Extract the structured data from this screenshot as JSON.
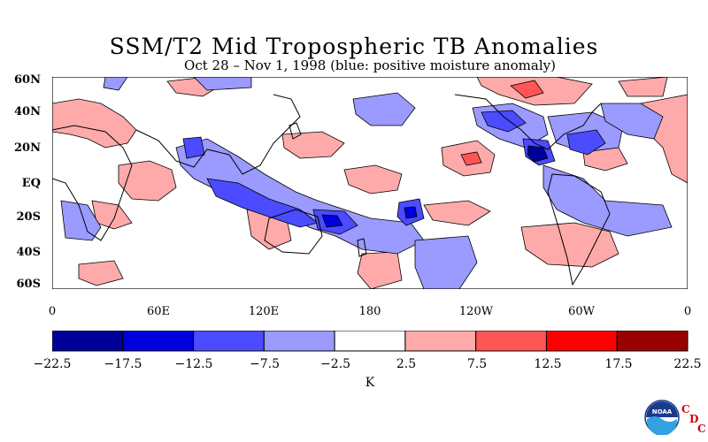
{
  "title": "SSM/T2 Mid Tropospheric TB Anomalies",
  "subtitle": "Oct 28 – Nov 1, 1998 (blue: positive moisture anomaly)",
  "map": {
    "lat_labels": [
      "60N",
      "40N",
      "20N",
      "EQ",
      "20S",
      "40S",
      "60S"
    ],
    "lon_labels": [
      "0",
      "60E",
      "120E",
      "180",
      "120W",
      "60W",
      "0"
    ],
    "ocean_color": "#ffffff",
    "coastline_color": "#000000"
  },
  "colorbar": {
    "ticks": [
      "−22.5",
      "−17.5",
      "−12.5",
      "−7.5",
      "−2.5",
      "2.5",
      "7.5",
      "12.5",
      "17.5",
      "22.5"
    ],
    "colors": [
      "#000099",
      "#0000dd",
      "#4b4bff",
      "#9a9aff",
      "#ffffff",
      "#ffaaaa",
      "#ff5555",
      "#ff0000",
      "#990000"
    ],
    "unit": "K"
  },
  "logo": {
    "name": "NOAA",
    "cdc_letters": [
      "C",
      "D",
      "C"
    ]
  }
}
